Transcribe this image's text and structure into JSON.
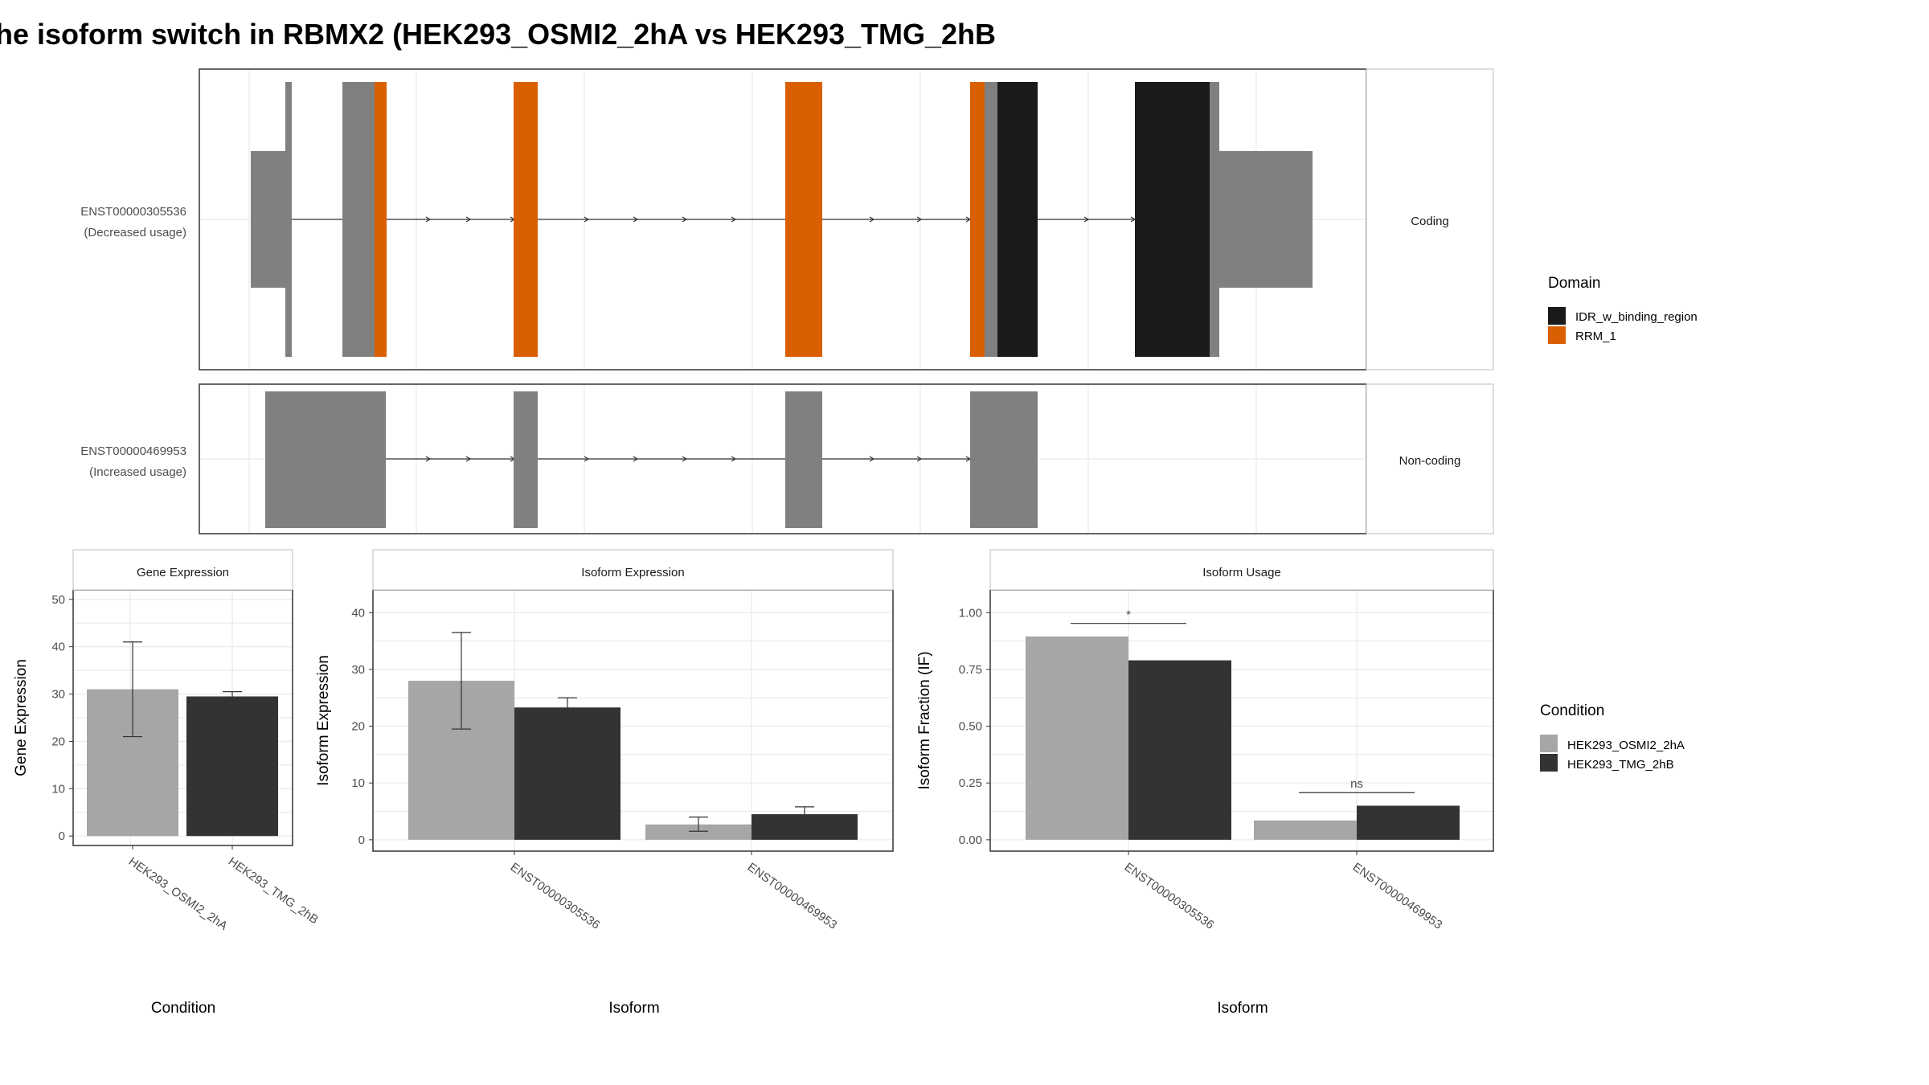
{
  "title": "he isoform switch in RBMX2 (HEK293_OSMI2_2hA vs HEK293_TMG_2hB",
  "colors": {
    "idr": "#1a1a1a",
    "rrm": "#d95f02",
    "exon": "#808080",
    "cond_a": "#a6a6a6",
    "cond_b": "#333333"
  },
  "transcript_panel": {
    "rows": [
      {
        "id": "ENST00000305536",
        "usage": "(Decreased usage)",
        "strip": "Coding"
      },
      {
        "id": "ENST00000469953",
        "usage": "(Increased usage)",
        "strip": "Non-coding"
      }
    ]
  },
  "domain_legend": {
    "title": "Domain",
    "items": [
      {
        "label": "IDR_w_binding_region",
        "color": "#1a1a1a"
      },
      {
        "label": "RRM_1",
        "color": "#d95f02"
      }
    ]
  },
  "condition_legend": {
    "title": "Condition",
    "items": [
      {
        "label": "HEK293_OSMI2_2hA",
        "color": "#a6a6a6"
      },
      {
        "label": "HEK293_TMG_2hB",
        "color": "#333333"
      }
    ]
  },
  "chart_data": [
    {
      "type": "bar",
      "title": "Gene Expression",
      "xlabel": "Condition",
      "ylabel": "Gene Expression",
      "categories": [
        "HEK293_OSMI2_2hA",
        "HEK293_TMG_2hB"
      ],
      "values": [
        31.0,
        29.5
      ],
      "errors": [
        [
          21,
          41
        ],
        [
          28.5,
          30.5
        ]
      ],
      "ylim": [
        -2,
        52
      ],
      "yticks": [
        "0",
        "10",
        "20",
        "30",
        "40",
        "50"
      ],
      "grid": true
    },
    {
      "type": "bar",
      "title": "Isoform Expression",
      "xlabel": "Isoform",
      "ylabel": "Isoform Expression",
      "categories": [
        "ENST00000305536",
        "ENST00000469953"
      ],
      "series": [
        {
          "name": "HEK293_OSMI2_2hA",
          "values": [
            28.0,
            2.7
          ],
          "errors": [
            [
              19.5,
              36.5
            ],
            [
              1.5,
              4.0
            ]
          ]
        },
        {
          "name": "HEK293_TMG_2hB",
          "values": [
            23.3,
            4.5
          ],
          "errors": [
            [
              22.0,
              25.0
            ],
            [
              3.2,
              5.8
            ]
          ]
        }
      ],
      "ylim": [
        -2,
        44
      ],
      "yticks": [
        "0",
        "10",
        "20",
        "30",
        "40"
      ],
      "grid": true
    },
    {
      "type": "bar",
      "title": "Isoform Usage",
      "xlabel": "Isoform",
      "ylabel": "Isoform Fraction (IF)",
      "categories": [
        "ENST00000305536",
        "ENST00000469953"
      ],
      "series": [
        {
          "name": "HEK293_OSMI2_2hA",
          "values": [
            0.895,
            0.085
          ]
        },
        {
          "name": "HEK293_TMG_2hB",
          "values": [
            0.79,
            0.15
          ]
        }
      ],
      "significance": [
        "*",
        "ns"
      ],
      "ylim": [
        -0.05,
        1.1
      ],
      "yticks": [
        "0.00",
        "0.25",
        "0.50",
        "0.75",
        "1.00"
      ],
      "grid": true
    }
  ]
}
